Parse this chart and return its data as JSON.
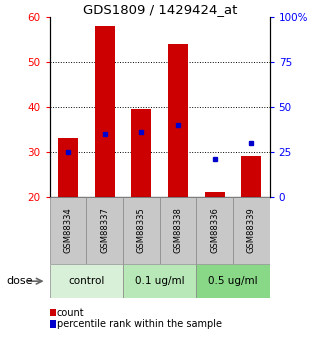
{
  "title": "GDS1809 / 1429424_at",
  "samples": [
    "GSM88334",
    "GSM88337",
    "GSM88335",
    "GSM88338",
    "GSM88336",
    "GSM88339"
  ],
  "bar_bottoms": [
    20,
    20,
    20,
    20,
    20,
    20
  ],
  "bar_tops": [
    33,
    58,
    39.5,
    54,
    21,
    29
  ],
  "percentile_values": [
    25,
    35,
    36,
    40,
    21,
    30
  ],
  "ylim": [
    20,
    60
  ],
  "y2lim": [
    0,
    100
  ],
  "yticks": [
    20,
    30,
    40,
    50,
    60
  ],
  "y2ticks": [
    0,
    25,
    50,
    75,
    100
  ],
  "y2ticklabels": [
    "0",
    "25",
    "50",
    "75",
    "100%"
  ],
  "bar_color": "#cc0000",
  "dot_color": "#0000cc",
  "groups": [
    {
      "label": "control",
      "start": 0,
      "end": 2,
      "color": "#d8f0d8"
    },
    {
      "label": "0.1 ug/ml",
      "start": 2,
      "end": 4,
      "color": "#b8e8b8"
    },
    {
      "label": "0.5 ug/ml",
      "start": 4,
      "end": 6,
      "color": "#88d888"
    }
  ],
  "dose_label": "dose",
  "legend_count_label": "count",
  "legend_percentile_label": "percentile rank within the sample",
  "plot_bg_color": "#ffffff",
  "sample_bg_color": "#c8c8c8",
  "bar_width": 0.55
}
